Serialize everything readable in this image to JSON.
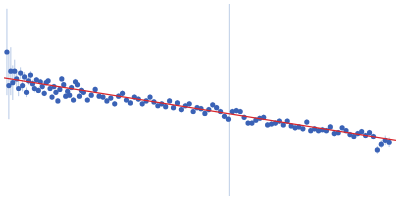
{
  "chart_data": {
    "type": "scatter",
    "grid": false,
    "tick_labels": false,
    "xlim": [
      0,
      400
    ],
    "ylim": [
      0,
      200
    ],
    "xticks": [],
    "yticks": [],
    "series": [
      {
        "type": "scatter",
        "color": "#3a62b6",
        "marker": "circle",
        "x": [
          3,
          5,
          7,
          9,
          11,
          13,
          15,
          17,
          19,
          21,
          23,
          25,
          27,
          29,
          31,
          33,
          35,
          37,
          39,
          41,
          43,
          45,
          47,
          49,
          51,
          53,
          55,
          57,
          59,
          61,
          63,
          65,
          67,
          69,
          71,
          73,
          75,
          77,
          79,
          81,
          85,
          89,
          93,
          97,
          101,
          105,
          109,
          113,
          117,
          121,
          125,
          129,
          133,
          137,
          141,
          145,
          149,
          153,
          157,
          161,
          165,
          169,
          173,
          177,
          181,
          185,
          189,
          193,
          197,
          201,
          205,
          209,
          213,
          217,
          221,
          225,
          229,
          233,
          237,
          241,
          245,
          249,
          253,
          257,
          261,
          265,
          269,
          273,
          277,
          281,
          285,
          289,
          293,
          297,
          301,
          305,
          309,
          313,
          317,
          321,
          325,
          329,
          333,
          337,
          341,
          345,
          349,
          353,
          357,
          361,
          365,
          369,
          373,
          377,
          381,
          385,
          389,
          393
        ],
        "values": [
          150,
          115,
          130,
          118,
          130,
          122,
          112,
          128,
          115,
          124,
          108,
          120,
          126,
          117,
          112,
          121,
          110,
          119,
          114,
          107,
          118,
          120,
          112,
          103,
          114,
          108,
          99,
          111,
          122,
          116,
          104,
          109,
          105,
          113,
          100,
          119,
          116,
          104,
          110,
          108,
          100,
          105,
          111,
          104,
          103,
          99,
          102,
          96,
          104,
          107,
          100,
          97,
          103,
          101,
          96,
          99,
          103,
          98,
          94,
          96,
          93,
          99,
          92,
          97,
          90,
          94,
          96,
          88,
          92,
          91,
          86,
          90,
          95,
          92,
          88,
          83,
          80,
          88,
          89,
          88,
          82,
          76,
          76,
          79,
          81,
          82,
          74,
          75,
          76,
          78,
          74,
          78,
          73,
          71,
          72,
          70,
          77,
          68,
          70,
          68,
          69,
          68,
          72,
          65,
          66,
          71,
          68,
          64,
          62,
          65,
          67,
          63,
          66,
          62,
          48,
          54,
          58,
          56
        ],
        "errors": [
          45,
          35,
          25,
          18,
          12,
          9,
          8,
          6,
          6,
          5,
          5,
          4,
          4,
          4,
          4,
          3,
          3,
          3,
          3,
          3,
          3,
          3,
          3,
          3,
          3,
          3,
          3,
          3,
          3,
          3,
          3,
          3,
          3,
          3,
          3,
          3,
          3,
          3,
          3,
          3,
          3,
          3,
          3,
          3,
          3,
          3,
          3,
          3,
          3,
          3,
          3,
          3,
          3,
          3,
          3,
          3,
          3,
          3,
          3,
          3,
          3,
          3,
          3,
          3,
          3,
          3,
          3,
          3,
          3,
          3,
          3,
          3,
          3,
          3,
          3,
          3,
          3,
          3,
          3,
          3,
          3,
          3,
          3,
          3,
          3,
          3,
          3,
          3,
          3,
          3,
          3,
          3,
          3,
          3,
          3,
          3,
          3,
          3,
          3,
          3,
          3,
          3,
          3,
          3,
          3,
          3,
          3,
          3,
          3,
          3,
          3,
          3,
          3,
          3,
          4,
          4,
          5,
          5
        ]
      },
      {
        "type": "line",
        "color": "#d9262b",
        "line_style": "solid",
        "x": [
          0,
          400
        ],
        "values": [
          123,
          58
        ]
      },
      {
        "type": "line",
        "color": "#c8d6ea",
        "line_style": "solid",
        "x": [
          230,
          230
        ],
        "values": [
          0,
          200
        ]
      }
    ]
  }
}
